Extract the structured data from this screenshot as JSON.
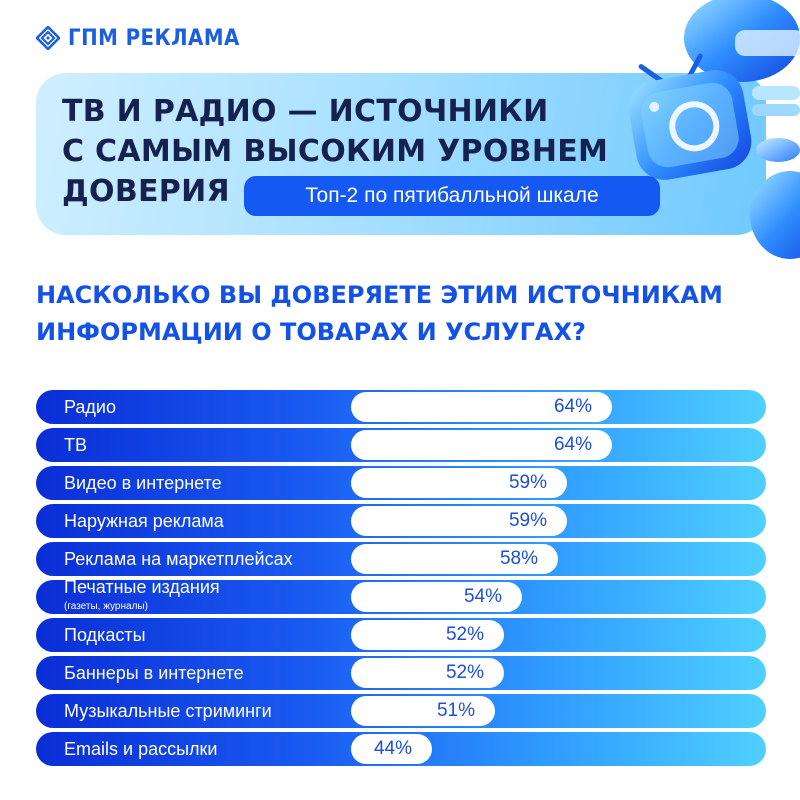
{
  "brand": {
    "name": "ГПМ РЕКЛАМА",
    "color": "#1a5fe0"
  },
  "hero": {
    "title_lines": [
      "ТВ И РАДИО — ИСТОЧНИКИ",
      "С САМЫМ ВЫСОКИМ УРОВНЕМ",
      "ДОВЕРИЯ"
    ],
    "badge": "Топ-2 по пятибалльной шкале"
  },
  "question_lines": [
    "НАСКОЛЬКО ВЫ ДОВЕРЯЕТЕ ЭТИМ ИСТОЧНИКАМ",
    "ИНФОРМАЦИИ О ТОВАРАХ И УСЛУГАХ?"
  ],
  "decor_icons": [
    "retro-tv-icon",
    "dumbbell-3d-icon"
  ],
  "chart_data": {
    "type": "bar",
    "orientation": "horizontal",
    "categories": [
      "Радио",
      "ТВ",
      "Видео в интернете",
      "Наружная реклама",
      "Реклама на маркетплейсах",
      "Печатные издания",
      "Подкасты",
      "Баннеры в интернете",
      "Музыкальные стриминги",
      "Emails и рассылки"
    ],
    "category_notes": [
      "",
      "",
      "",
      "",
      "",
      "(газеты, журналы)",
      "",
      "",
      "",
      ""
    ],
    "values": [
      64,
      64,
      59,
      59,
      58,
      54,
      52,
      52,
      51,
      44
    ],
    "value_labels": [
      "64%",
      "64%",
      "59%",
      "59%",
      "58%",
      "54%",
      "52%",
      "52%",
      "51%",
      "44%"
    ],
    "unit": "%",
    "colors": {
      "row_start": "#0a2ed6",
      "row_end": "#4fd0ff",
      "bar": "#ffffff",
      "value_text": "#1d4fd8"
    }
  }
}
